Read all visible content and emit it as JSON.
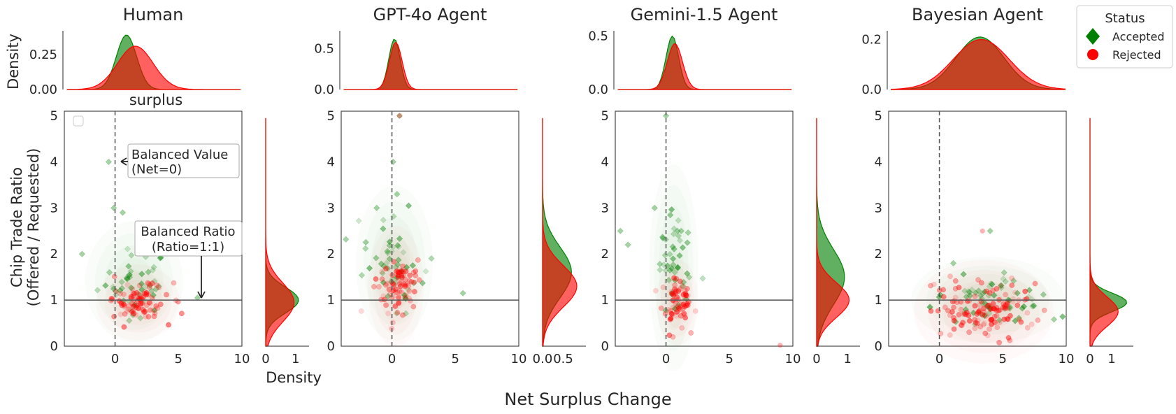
{
  "figure": {
    "x_label": "Net Surplus Change",
    "y_label_line1": "Chip Trade Ratio",
    "y_label_line2": "(Offered / Requested)",
    "top_density_label": "Density",
    "right_density_label": "Density",
    "stray_label": "surplus"
  },
  "legend": {
    "title": "Status",
    "entries": [
      {
        "label": "Accepted",
        "color": "#008000",
        "marker": "diamond"
      },
      {
        "label": "Rejected",
        "color": "#ff0000",
        "marker": "circle"
      }
    ]
  },
  "annotations": {
    "balanced_value_line1": "Balanced Value",
    "balanced_value_line2": "(Net=0)",
    "balanced_ratio_line1": "Balanced Ratio",
    "balanced_ratio_line2": "(Ratio=1:1)"
  },
  "chart_data": [
    {
      "type": "scatter",
      "title": "Human",
      "xlim": [
        -4,
        10
      ],
      "ylim": [
        0,
        5.1
      ],
      "x_ticks": [
        "0",
        "5",
        "10"
      ],
      "y_ticks": [
        "0",
        "1",
        "2",
        "3",
        "4",
        "5"
      ],
      "top_density_ticks": [
        "0.00",
        "0.25"
      ],
      "top_density_max": 0.42,
      "top_accepted_kde": {
        "mu": 0.9,
        "sd": 0.8,
        "peak": 0.39
      },
      "top_rejected_kde": {
        "mu": 1.6,
        "sd": 1.4,
        "peak": 0.31
      },
      "right_density_ticks": [
        "0",
        "1"
      ],
      "right_density_max": 1.45,
      "right_accepted_kde": {
        "mu": 1.0,
        "sd": 0.28,
        "peak": 1.1
      },
      "right_rejected_kde": {
        "mu": 0.95,
        "sd": 0.42,
        "peak": 0.95
      },
      "accepted_cluster": {
        "cx": 1.5,
        "cy": 1.4,
        "sx": 1.4,
        "sy": 0.35,
        "n": 45
      },
      "rejected_cluster": {
        "cx": 1.8,
        "cy": 0.95,
        "sx": 1.2,
        "sy": 0.22,
        "n": 90
      },
      "accepted_outliers": [
        [
          -0.5,
          4.0
        ],
        [
          -0.1,
          3.0
        ],
        [
          0.6,
          2.9
        ],
        [
          -2.6,
          2.0
        ],
        [
          6.5,
          1.05
        ]
      ],
      "rejected_outliers": []
    },
    {
      "type": "scatter",
      "title": "GPT-4o Agent",
      "xlim": [
        -4,
        10
      ],
      "ylim": [
        0,
        5.1
      ],
      "x_ticks": [
        "0",
        "5",
        "10"
      ],
      "y_ticks": [
        "0",
        "1",
        "2",
        "3",
        "4",
        "5"
      ],
      "top_density_ticks": [
        "0.0",
        "0.5"
      ],
      "top_density_max": 0.72,
      "top_accepted_kde": {
        "mu": 0.2,
        "sd": 0.45,
        "peak": 0.62
      },
      "top_rejected_kde": {
        "mu": 0.3,
        "sd": 0.5,
        "peak": 0.58
      },
      "right_density_ticks": [
        "0.0",
        "0.5"
      ],
      "right_density_max": 1.05,
      "right_accepted_kde": {
        "mu": 1.6,
        "sd": 0.55,
        "peak": 0.7
      },
      "right_rejected_kde": {
        "mu": 1.3,
        "sd": 0.45,
        "peak": 0.83
      },
      "accepted_cluster": {
        "cx": 0.2,
        "cy": 1.8,
        "sx": 1.1,
        "sy": 0.45,
        "n": 50
      },
      "rejected_cluster": {
        "cx": 0.3,
        "cy": 1.3,
        "sx": 0.8,
        "sy": 0.35,
        "n": 80
      },
      "accepted_outliers": [
        [
          0.6,
          5.0
        ],
        [
          0.1,
          4.0
        ],
        [
          -1.2,
          3.0
        ],
        [
          0.4,
          3.3
        ],
        [
          5.6,
          1.15
        ]
      ],
      "rejected_outliers": [
        [
          0.6,
          5.0
        ]
      ]
    },
    {
      "type": "scatter",
      "title": "Gemini-1.5 Agent",
      "xlim": [
        -4,
        10
      ],
      "ylim": [
        0,
        5.1
      ],
      "x_ticks": [
        "0",
        "5",
        "10"
      ],
      "y_ticks": [
        "0",
        "1",
        "2",
        "3",
        "4",
        "5"
      ],
      "top_density_ticks": [
        "0.0",
        "0.5"
      ],
      "top_density_max": 0.55,
      "top_accepted_kde": {
        "mu": 0.5,
        "sd": 0.5,
        "peak": 0.5
      },
      "top_rejected_kde": {
        "mu": 0.7,
        "sd": 0.6,
        "peak": 0.43
      },
      "right_density_ticks": [
        "0",
        "1"
      ],
      "right_density_max": 1.4,
      "right_accepted_kde": {
        "mu": 1.5,
        "sd": 0.6,
        "peak": 0.9
      },
      "right_rejected_kde": {
        "mu": 1.0,
        "sd": 0.38,
        "peak": 1.05
      },
      "accepted_cluster": {
        "cx": 0.6,
        "cy": 1.7,
        "sx": 0.7,
        "sy": 0.6,
        "n": 45
      },
      "rejected_cluster": {
        "cx": 0.9,
        "cy": 0.95,
        "sx": 0.6,
        "sy": 0.25,
        "n": 70
      },
      "accepted_outliers": [
        [
          0.0,
          5.0
        ],
        [
          -0.9,
          3.0
        ],
        [
          -3.6,
          2.5
        ],
        [
          -3.0,
          2.2
        ],
        [
          0.9,
          2.5
        ],
        [
          1.2,
          2.5
        ]
      ],
      "rejected_outliers": [
        [
          9.0,
          0.02
        ],
        [
          0.4,
          0.6
        ]
      ]
    },
    {
      "type": "scatter",
      "title": "Bayesian Agent",
      "xlim": [
        -4,
        10
      ],
      "ylim": [
        0,
        5.1
      ],
      "x_ticks": [
        "0",
        "5",
        "10"
      ],
      "y_ticks": [
        "0",
        "1",
        "2",
        "3",
        "4",
        "5"
      ],
      "top_density_ticks": [
        "0.0",
        "0.2"
      ],
      "top_density_max": 0.235,
      "top_accepted_kde": {
        "mu": 3.2,
        "sd": 1.9,
        "peak": 0.21
      },
      "top_rejected_kde": {
        "mu": 3.3,
        "sd": 2.2,
        "peak": 0.2
      },
      "right_density_ticks": [
        "0",
        "1"
      ],
      "right_density_max": 2.0,
      "right_accepted_kde": {
        "mu": 0.95,
        "sd": 0.2,
        "peak": 1.7
      },
      "right_rejected_kde": {
        "mu": 0.75,
        "sd": 0.32,
        "peak": 1.3
      },
      "accepted_cluster": {
        "cx": 3.8,
        "cy": 1.0,
        "sx": 2.2,
        "sy": 0.25,
        "n": 60
      },
      "rejected_cluster": {
        "cx": 3.5,
        "cy": 0.75,
        "sx": 2.0,
        "sy": 0.3,
        "n": 130
      },
      "accepted_outliers": [
        [
          4.0,
          2.5
        ],
        [
          8.2,
          1.12
        ],
        [
          1.1,
          1.8
        ]
      ],
      "rejected_outliers": [
        [
          3.4,
          2.5
        ]
      ]
    }
  ]
}
